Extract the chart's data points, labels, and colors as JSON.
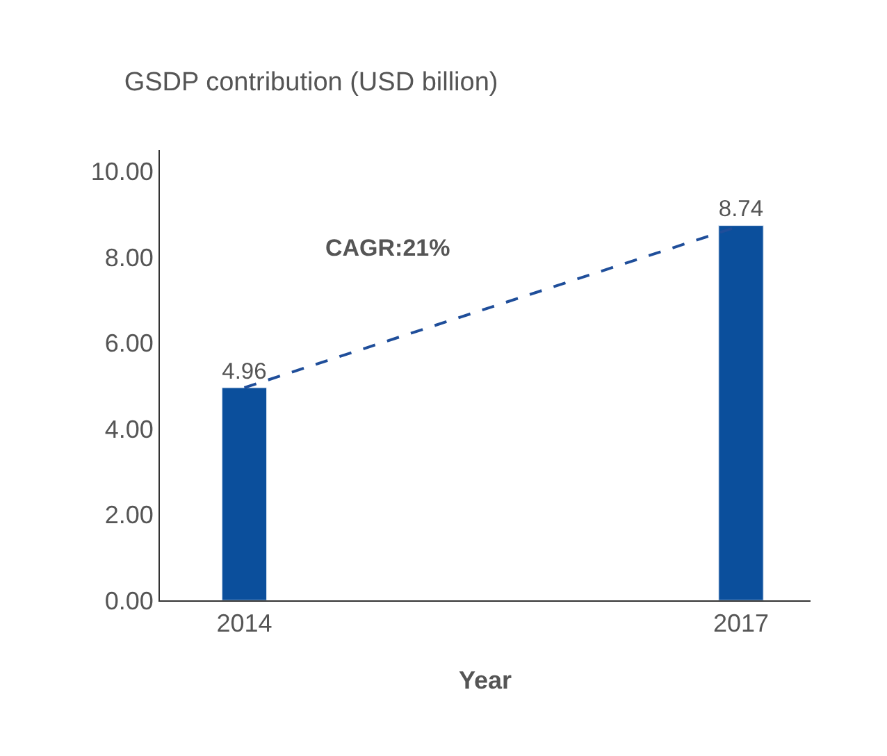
{
  "chart_data": {
    "type": "bar",
    "title": "GSDP contribution (USD billion)",
    "xlabel": "Year",
    "categories": [
      "2014",
      "2017"
    ],
    "series": [
      {
        "color": "#0b4f9c",
        "values": [
          4.96,
          8.74
        ],
        "value_labels": [
          "4.96",
          "8.74"
        ]
      },
      {
        "type": "line",
        "color": "#1f4e9a",
        "values": [
          4.96,
          8.74
        ],
        "line_style": "dashed",
        "marker": "none"
      }
    ],
    "ylim": [
      0,
      10.5
    ],
    "yticks": [
      {
        "value": 0,
        "label": "0.00"
      },
      {
        "value": 2,
        "label": "2.00"
      },
      {
        "value": 4,
        "label": "4.00"
      },
      {
        "value": 6,
        "label": "6.00"
      },
      {
        "value": 8,
        "label": "8.00"
      },
      {
        "value": 10,
        "label": "10.00"
      }
    ],
    "annotations": [
      "CAGR:21%"
    ]
  }
}
